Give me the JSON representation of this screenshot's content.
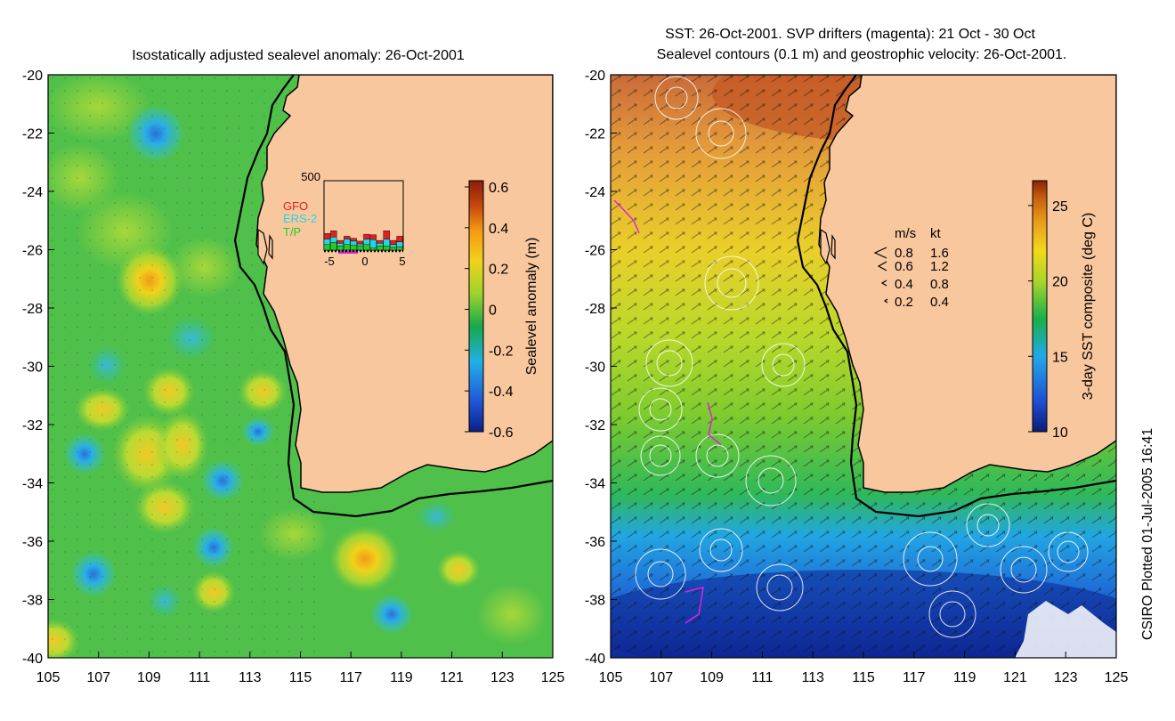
{
  "left_panel": {
    "title": "Isostatically adjusted sealevel anomaly: 26-Oct-2001",
    "colorbar": {
      "label": "Sealevel anomaly (m)",
      "ticks": [
        "0.6",
        "0.4",
        "0.2",
        "0",
        "-0.2",
        "-0.4",
        "-0.6"
      ],
      "range": [
        -0.6,
        0.6
      ],
      "colors": [
        "#0b1f8a",
        "#1f57d6",
        "#21b0e6",
        "#10a23c",
        "#9cd42e",
        "#f0d21a",
        "#f59a14",
        "#c8470e",
        "#8a1e06"
      ]
    },
    "inset": {
      "ymax_label": "500",
      "x_ticks": [
        "-5",
        "0",
        "5"
      ],
      "legend": [
        {
          "name": "GFO",
          "color": "#e02020"
        },
        {
          "name": "ERS-2",
          "color": "#22d6e6"
        },
        {
          "name": "T/P",
          "color": "#22cc22"
        }
      ],
      "bars": [
        {
          "tp": 40,
          "ers": 40,
          "gfo": 40
        },
        {
          "tp": 55,
          "ers": 40,
          "gfo": 45
        },
        {
          "tp": 30,
          "ers": 20,
          "gfo": 20
        },
        {
          "tp": 40,
          "ers": 40,
          "gfo": 20
        },
        {
          "tp": 35,
          "ers": 30,
          "gfo": 20
        },
        {
          "tp": 30,
          "ers": 15,
          "gfo": 20
        },
        {
          "tp": 40,
          "ers": 40,
          "gfo": 35
        },
        {
          "tp": 15,
          "ers": 60,
          "gfo": 35
        },
        {
          "tp": 30,
          "ers": 20,
          "gfo": 20
        },
        {
          "tp": 30,
          "ers": 50,
          "gfo": 60
        },
        {
          "tp": 20,
          "ers": 20,
          "gfo": 30
        },
        {
          "tp": 25,
          "ers": 35,
          "gfo": 40
        }
      ]
    }
  },
  "right_panel": {
    "title_line1": "SST: 26-Oct-2001. SVP drifters (magenta): 21 Oct - 30 Oct",
    "title_line2": "Sealevel contours (0.1 m) and geostrophic velocity: 26-Oct-2001.",
    "colorbar": {
      "label": "3-day SST composite (deg C)",
      "ticks": [
        "25",
        "20",
        "15",
        "10"
      ],
      "range": [
        10,
        26
      ],
      "colors": [
        "#0b1a7a",
        "#1e4fd0",
        "#22a8e8",
        "#19b04a",
        "#a8d62a",
        "#f2d91c",
        "#e89a1a",
        "#c8600f",
        "#8a2306"
      ]
    },
    "velocity_legend": {
      "headers": [
        "m/s",
        "kt"
      ],
      "rows": [
        {
          "ms": "0.8",
          "kt": "1.6"
        },
        {
          "ms": "0.6",
          "kt": "1.2"
        },
        {
          "ms": "0.4",
          "kt": "0.8"
        },
        {
          "ms": "0.2",
          "kt": "0.4"
        }
      ]
    }
  },
  "axes": {
    "y_ticks": [
      "-20",
      "-22",
      "-24",
      "-26",
      "-28",
      "-30",
      "-32",
      "-34",
      "-36",
      "-38",
      "-40"
    ],
    "x_ticks": [
      "105",
      "107",
      "109",
      "111",
      "113",
      "115",
      "117",
      "119",
      "121",
      "123",
      "125"
    ]
  },
  "colors": {
    "land": "#f9c79e",
    "coastline": "#000000",
    "left_bg": "#4fc04a",
    "contour": "#ffffff"
  },
  "credit": "CSIRO Plotted 01-Jul-2005 16:41"
}
